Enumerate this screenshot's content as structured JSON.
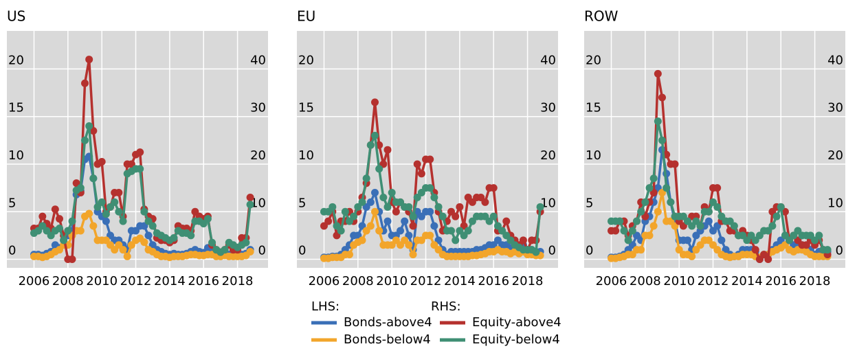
{
  "legend_headers": [
    "LHS:",
    "RHS:"
  ],
  "chart_data": [
    {
      "type": "line",
      "title": "US",
      "x": [
        2006,
        2006.25,
        2006.5,
        2006.75,
        2007,
        2007.25,
        2007.5,
        2007.75,
        2008,
        2008.25,
        2008.5,
        2008.75,
        2009,
        2009.25,
        2009.5,
        2009.75,
        2010,
        2010.25,
        2010.5,
        2010.75,
        2011,
        2011.25,
        2011.5,
        2011.75,
        2012,
        2012.25,
        2012.5,
        2012.75,
        2013,
        2013.25,
        2013.5,
        2013.75,
        2014,
        2014.25,
        2014.5,
        2014.75,
        2015,
        2015.25,
        2015.5,
        2015.75,
        2016,
        2016.25,
        2016.5,
        2016.75,
        2017,
        2017.25,
        2017.5,
        2017.75,
        2018,
        2018.25,
        2018.5,
        2018.75
      ],
      "xlim": [
        2004.4,
        2019.8
      ],
      "xticks": [
        2006,
        2008,
        2010,
        2012,
        2014,
        2016,
        2018
      ],
      "ylim": [
        -0.9,
        24
      ],
      "yticks": [
        0,
        5,
        10,
        15,
        20
      ],
      "y2lim": [
        -1.8,
        48
      ],
      "y2ticks": [
        0,
        10,
        20,
        30,
        40
      ],
      "grid": true,
      "series": [
        {
          "name": "Bonds-above4",
          "color": "#3a6fb7",
          "values": [
            0.5,
            0.5,
            0.4,
            0.6,
            0.8,
            1.5,
            1.2,
            2.0,
            2.5,
            3.0,
            6.8,
            7.2,
            10.5,
            10.8,
            8.5,
            5.0,
            4.5,
            4.0,
            2.5,
            2.0,
            2.0,
            1.5,
            1.0,
            3.0,
            3.0,
            3.5,
            3.5,
            2.5,
            1.5,
            1.0,
            0.8,
            0.6,
            0.5,
            0.6,
            0.5,
            0.5,
            0.6,
            0.8,
            1.0,
            0.8,
            0.7,
            1.2,
            1.0,
            0.6,
            0.5,
            0.6,
            0.5,
            0.6,
            0.5,
            0.5,
            0.6,
            1.0
          ]
        },
        {
          "name": "Bonds-below4",
          "color": "#f2a52b",
          "values": [
            0.3,
            0.3,
            0.2,
            0.3,
            0.5,
            0.8,
            1.0,
            1.5,
            1.5,
            2.5,
            3.0,
            3.0,
            4.5,
            4.8,
            3.5,
            2.0,
            2.0,
            2.0,
            1.5,
            1.0,
            1.5,
            1.0,
            0.3,
            1.5,
            2.0,
            2.2,
            1.8,
            1.0,
            0.8,
            0.5,
            0.3,
            0.3,
            0.2,
            0.3,
            0.3,
            0.3,
            0.4,
            0.5,
            0.5,
            0.4,
            0.4,
            0.5,
            0.5,
            0.3,
            0.3,
            0.4,
            0.3,
            0.3,
            0.3,
            0.3,
            0.4,
            0.8
          ]
        },
        {
          "name": "Equity-above4",
          "color": "#b5312e",
          "axis": "y2",
          "values": [
            6.5,
            6.5,
            9,
            7.5,
            6.5,
            10.5,
            8.5,
            5,
            0,
            0,
            16,
            14,
            37,
            42,
            27,
            20,
            20.5,
            10,
            11,
            14,
            14,
            9,
            20,
            20,
            22,
            22.5,
            10.5,
            9,
            8.5,
            4.5,
            4,
            4,
            3.5,
            4,
            7,
            6.5,
            6.5,
            6,
            10,
            9,
            8.5,
            9,
            3,
            2,
            1.5,
            2,
            3,
            2,
            2,
            4.5,
            4.5,
            13
          ]
        },
        {
          "name": "Equity-below4",
          "color": "#3f8f74",
          "axis": "y2",
          "values": [
            5.5,
            6,
            7,
            6,
            5,
            6,
            6.5,
            4,
            6,
            8,
            14.5,
            15,
            25,
            28,
            17,
            11,
            12,
            9.5,
            11,
            12,
            10,
            8,
            18,
            18.5,
            19,
            19,
            10,
            8,
            7,
            5.5,
            5,
            4.5,
            4,
            4.5,
            6,
            5.5,
            5.5,
            5,
            8,
            8,
            7.5,
            8.5,
            3.5,
            2,
            1.5,
            2,
            3.5,
            3,
            2.5,
            3,
            3.5,
            11.5
          ]
        }
      ]
    },
    {
      "type": "line",
      "title": "EU",
      "x": [
        2006,
        2006.25,
        2006.5,
        2006.75,
        2007,
        2007.25,
        2007.5,
        2007.75,
        2008,
        2008.25,
        2008.5,
        2008.75,
        2009,
        2009.25,
        2009.5,
        2009.75,
        2010,
        2010.25,
        2010.5,
        2010.75,
        2011,
        2011.25,
        2011.5,
        2011.75,
        2012,
        2012.25,
        2012.5,
        2012.75,
        2013,
        2013.25,
        2013.5,
        2013.75,
        2014,
        2014.25,
        2014.5,
        2014.75,
        2015,
        2015.25,
        2015.5,
        2015.75,
        2016,
        2016.25,
        2016.5,
        2016.75,
        2017,
        2017.25,
        2017.5,
        2017.75,
        2018,
        2018.25,
        2018.5,
        2018.75
      ],
      "xlim": [
        2004.4,
        2019.8
      ],
      "xticks": [
        2006,
        2008,
        2010,
        2012,
        2014,
        2016,
        2018
      ],
      "ylim": [
        -0.9,
        24
      ],
      "yticks": [
        0,
        5,
        10,
        15,
        20
      ],
      "y2lim": [
        -1.8,
        48
      ],
      "y2ticks": [
        0,
        10,
        20,
        30,
        40
      ],
      "grid": true,
      "series": [
        {
          "name": "Bonds-above4",
          "color": "#3a6fb7",
          "values": [
            0.2,
            0.2,
            0.3,
            0.3,
            0.5,
            1.0,
            1.5,
            2.5,
            2.5,
            3.5,
            5.5,
            6.0,
            7.0,
            5.0,
            3.0,
            4.0,
            2.5,
            2.5,
            3.0,
            4.0,
            2.5,
            1.0,
            5.0,
            4.5,
            5.0,
            5.0,
            3.5,
            2.0,
            1.0,
            0.5,
            0.8,
            0.8,
            0.8,
            0.8,
            0.8,
            0.8,
            1.0,
            1.0,
            1.2,
            1.5,
            1.5,
            2.0,
            1.5,
            1.5,
            1.2,
            1.2,
            1.0,
            1.5,
            1.0,
            1.0,
            0.8,
            0.8
          ]
        },
        {
          "name": "Bonds-below4",
          "color": "#f2a52b",
          "values": [
            0.1,
            0.1,
            0.2,
            0.2,
            0.2,
            0.5,
            0.5,
            1.5,
            1.8,
            2.0,
            3.0,
            3.5,
            5.0,
            3.0,
            1.5,
            1.5,
            1.5,
            2.0,
            1.5,
            2.0,
            1.5,
            0.5,
            2.0,
            2.0,
            2.5,
            2.5,
            1.5,
            1.0,
            0.5,
            0.3,
            0.3,
            0.3,
            0.3,
            0.3,
            0.3,
            0.4,
            0.4,
            0.5,
            0.6,
            0.8,
            0.8,
            1.0,
            0.8,
            0.8,
            0.6,
            0.8,
            0.6,
            0.8,
            0.5,
            0.5,
            0.4,
            0.4
          ]
        },
        {
          "name": "Equity-above4",
          "color": "#b5312e",
          "axis": "y2",
          "values": [
            7,
            8,
            10,
            5,
            8,
            8,
            10,
            8,
            10,
            13,
            16,
            24,
            33,
            24,
            20,
            23,
            12,
            10,
            12,
            11,
            10,
            7,
            20,
            18,
            21,
            21,
            14,
            10,
            6,
            8,
            10,
            9,
            11,
            7,
            13,
            12,
            13,
            13,
            12,
            15,
            15,
            6,
            6,
            8,
            5,
            4,
            3,
            4,
            2,
            4,
            4,
            10
          ]
        },
        {
          "name": "Equity-below4",
          "color": "#3f8f74",
          "axis": "y2",
          "values": [
            10,
            10,
            11,
            7,
            6,
            10,
            8,
            9,
            11,
            12,
            17,
            24,
            26,
            19,
            13,
            11,
            14,
            12,
            12,
            11,
            11,
            9,
            13,
            14,
            15,
            15,
            13,
            11,
            9,
            6,
            6,
            4,
            6,
            5,
            6,
            8,
            9,
            9,
            9,
            8,
            9,
            7,
            6,
            5,
            4,
            3,
            2.5,
            2,
            2,
            2,
            1.5,
            11
          ]
        }
      ]
    },
    {
      "type": "line",
      "title": "ROW",
      "x": [
        2006,
        2006.25,
        2006.5,
        2006.75,
        2007,
        2007.25,
        2007.5,
        2007.75,
        2008,
        2008.25,
        2008.5,
        2008.75,
        2009,
        2009.25,
        2009.5,
        2009.75,
        2010,
        2010.25,
        2010.5,
        2010.75,
        2011,
        2011.25,
        2011.5,
        2011.75,
        2012,
        2012.25,
        2012.5,
        2012.75,
        2013,
        2013.25,
        2013.5,
        2013.75,
        2014,
        2014.25,
        2014.5,
        2014.75,
        2015,
        2015.25,
        2015.5,
        2015.75,
        2016,
        2016.25,
        2016.5,
        2016.75,
        2017,
        2017.25,
        2017.5,
        2017.75,
        2018,
        2018.25,
        2018.5,
        2018.75
      ],
      "xlim": [
        2004.4,
        2019.8
      ],
      "xticks": [
        2006,
        2008,
        2010,
        2012,
        2014,
        2016,
        2018
      ],
      "ylim": [
        -0.9,
        24
      ],
      "yticks": [
        0,
        5,
        10,
        15,
        20
      ],
      "y2lim": [
        -1.8,
        48
      ],
      "y2ticks": [
        0,
        10,
        20,
        30,
        40
      ],
      "grid": true,
      "series": [
        {
          "name": "Bonds-above4",
          "color": "#3a6fb7",
          "values": [
            0.2,
            0.2,
            0.3,
            0.5,
            1.0,
            1.5,
            2.5,
            2.0,
            4,
            4.5,
            6,
            7.5,
            11.5,
            9,
            6,
            4,
            2,
            2,
            2,
            1,
            2.5,
            3,
            3.5,
            4,
            3,
            3.5,
            2,
            1,
            0.5,
            0.3,
            0.5,
            1,
            1,
            1,
            0.8,
            0,
            0.5,
            0.5,
            1,
            1.5,
            2,
            2.5,
            2,
            1.5,
            1.5,
            1.5,
            1,
            1,
            0.5,
            0.8,
            0.5,
            0.8
          ]
        },
        {
          "name": "Bonds-below4",
          "color": "#f2a52b",
          "values": [
            0.1,
            0.1,
            0.2,
            0.3,
            0.5,
            0.5,
            1.0,
            1.0,
            2.5,
            2.5,
            3.5,
            5,
            7,
            4,
            4,
            3.5,
            1,
            0.5,
            0.5,
            0.3,
            1.0,
            1.5,
            2,
            2,
            1.5,
            1,
            0.5,
            0.3,
            0.2,
            0.3,
            0.3,
            0.5,
            0.5,
            0.5,
            0.3,
            0.2,
            0.5,
            0.5,
            0.8,
            1,
            1.2,
            1.5,
            1,
            0.8,
            1,
            1,
            0.8,
            0.5,
            0.3,
            0.3,
            0.3,
            0.3
          ]
        },
        {
          "name": "Equity-above4",
          "color": "#b5312e",
          "axis": "y2",
          "values": [
            6,
            6,
            8,
            8,
            5,
            7,
            8,
            12,
            9,
            12,
            14,
            39,
            34,
            22,
            20,
            20,
            8,
            7,
            8,
            9,
            9,
            7,
            11,
            10,
            15,
            15,
            8,
            8,
            6,
            6,
            5,
            6,
            5,
            4,
            2,
            0,
            1,
            0,
            10,
            11,
            11,
            10,
            4,
            5,
            4,
            3,
            3,
            4,
            3,
            4,
            2,
            1
          ]
        },
        {
          "name": "Equity-below4",
          "color": "#3f8f74",
          "axis": "y2",
          "values": [
            8,
            8,
            8,
            6,
            4,
            6,
            8,
            10,
            12,
            15,
            17,
            29,
            25,
            15,
            12,
            9,
            9,
            9,
            8,
            7,
            8,
            7,
            10,
            10,
            12,
            11,
            9,
            8,
            8,
            7,
            5,
            5,
            4,
            5,
            4,
            5,
            6,
            6,
            7,
            9,
            11,
            5,
            4,
            5,
            6,
            5,
            5,
            5,
            4,
            5,
            2,
            2
          ]
        }
      ]
    }
  ]
}
